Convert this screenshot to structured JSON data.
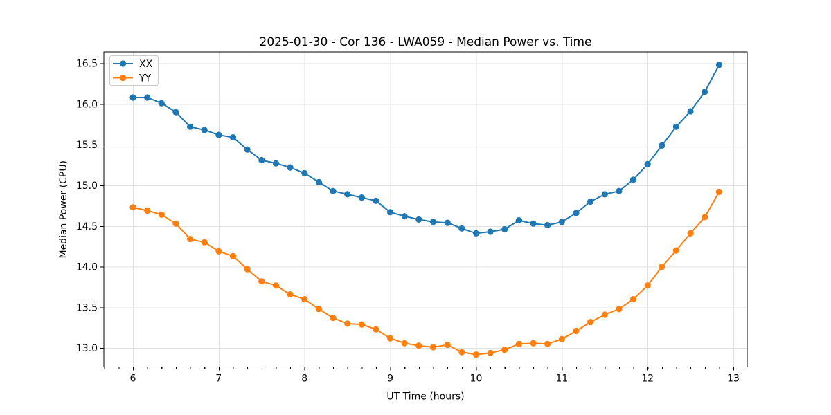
{
  "figure": {
    "title": "2025-01-30 - Cor 136 - LWA059 - Median Power vs. Time"
  },
  "chart_data": {
    "type": "line",
    "title": "2025-01-30 - Cor 136 - LWA059 - Median Power vs. Time",
    "xlabel": "UT Time (hours)",
    "ylabel": "Median Power (CPU)",
    "xlim": [
      5.661,
      13.161
    ],
    "ylim": [
      12.768,
      16.641
    ],
    "xticks": [
      6,
      7,
      8,
      9,
      10,
      11,
      12,
      13
    ],
    "xtick_labels": [
      "6",
      "7",
      "8",
      "9",
      "10",
      "11",
      "12",
      "13"
    ],
    "yticks": [
      13.0,
      13.5,
      14.0,
      14.5,
      15.0,
      15.5,
      16.0,
      16.5
    ],
    "ytick_labels": [
      "13.0",
      "13.5",
      "14.0",
      "14.5",
      "15.0",
      "15.5",
      "16.0",
      "16.5"
    ],
    "x_minor_tick_interval": 0.16667,
    "grid": true,
    "grid_color": "#e0e0e0",
    "background_color": "#ffffff",
    "legend_position": "upper left",
    "x": [
      6.0,
      6.167,
      6.333,
      6.5,
      6.667,
      6.833,
      7.0,
      7.167,
      7.333,
      7.5,
      7.667,
      7.833,
      8.0,
      8.167,
      8.333,
      8.5,
      8.667,
      8.833,
      9.0,
      9.167,
      9.333,
      9.5,
      9.667,
      9.833,
      10.0,
      10.167,
      10.333,
      10.5,
      10.667,
      10.833,
      11.0,
      11.167,
      11.333,
      11.5,
      11.667,
      11.833,
      12.0,
      12.167,
      12.333,
      12.5,
      12.667,
      12.833
    ],
    "series": [
      {
        "name": "XX",
        "color": "#1f77b4",
        "values": [
          16.08,
          16.08,
          16.01,
          15.9,
          15.72,
          15.68,
          15.62,
          15.59,
          15.44,
          15.31,
          15.27,
          15.22,
          15.15,
          15.04,
          14.93,
          14.89,
          14.85,
          14.81,
          14.67,
          14.62,
          14.58,
          14.55,
          14.54,
          14.47,
          14.41,
          14.43,
          14.46,
          14.57,
          14.53,
          14.51,
          14.55,
          14.66,
          14.8,
          14.89,
          14.93,
          15.07,
          15.26,
          15.49,
          15.72,
          15.91,
          16.15,
          16.48
        ]
      },
      {
        "name": "YY",
        "color": "#ff7f0e",
        "values": [
          14.73,
          14.69,
          14.64,
          14.53,
          14.34,
          14.3,
          14.19,
          14.13,
          13.97,
          13.82,
          13.77,
          13.66,
          13.6,
          13.48,
          13.37,
          13.3,
          13.29,
          13.23,
          13.12,
          13.06,
          13.03,
          13.01,
          13.04,
          12.95,
          12.92,
          12.94,
          12.98,
          13.05,
          13.06,
          13.05,
          13.11,
          13.21,
          13.32,
          13.41,
          13.48,
          13.6,
          13.77,
          14.0,
          14.2,
          14.41,
          14.61,
          14.92
        ]
      }
    ]
  }
}
